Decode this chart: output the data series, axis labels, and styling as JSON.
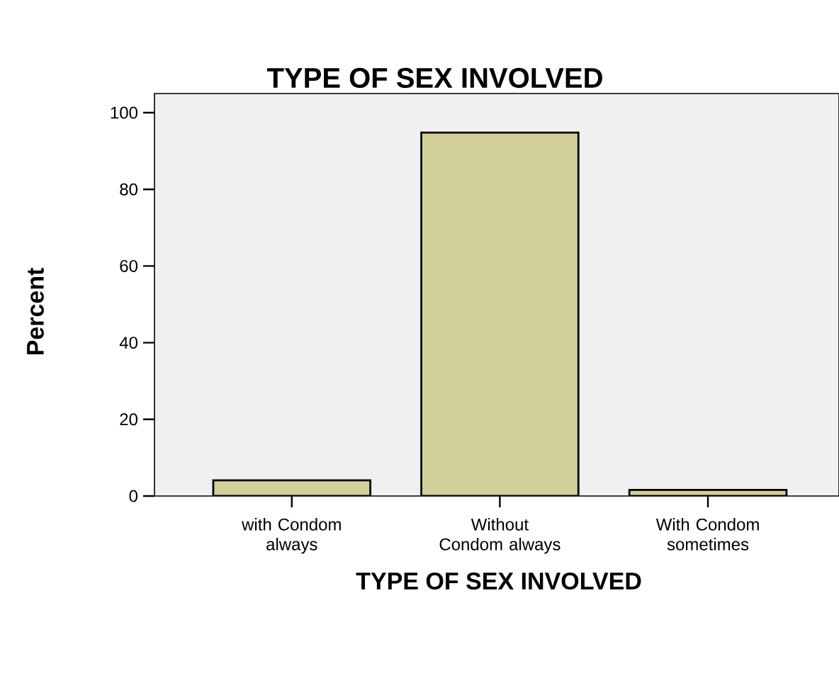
{
  "chart_data": {
    "type": "bar",
    "title": "TYPE OF SEX INVOLVED",
    "xlabel": "TYPE OF SEX INVOLVED",
    "ylabel": "Percent",
    "categories": [
      "with Condom always",
      "Without Condom always",
      "With Condom sometimes"
    ],
    "values": [
      4.1,
      94.8,
      1.6
    ],
    "color": "#d3cf98",
    "ylim": [
      0,
      105
    ],
    "yticks": [
      0,
      20,
      40,
      60,
      80,
      100
    ],
    "grid": false
  }
}
